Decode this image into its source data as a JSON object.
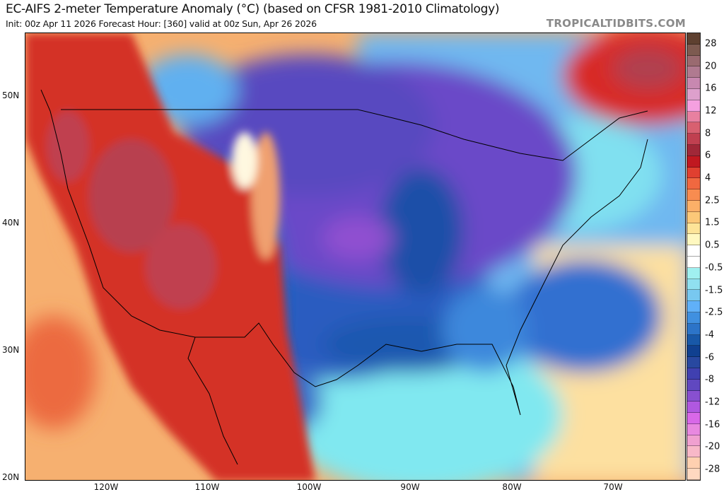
{
  "header": {
    "title": "EC-AIFS 2-meter Temperature Anomaly (°C) (based on CFSR 1981-2010 Climatology)",
    "subtitle": "Init: 00z Apr 11 2026   Forecast Hour: [360]   valid at 00z Sun, Apr 26 2026",
    "brand": "TROPICALTIDBITS.COM"
  },
  "map": {
    "latitude_labels": [
      "50N",
      "40N",
      "30N",
      "20N"
    ],
    "longitude_labels": [
      "120W",
      "110W",
      "100W",
      "90W",
      "80W",
      "70W"
    ]
  },
  "colorbar": {
    "labels": [
      "28",
      "20",
      "16",
      "12",
      "8",
      "6",
      "4",
      "2.5",
      "1.5",
      "0.5",
      "-0.5",
      "-1.5",
      "-2.5",
      "-4",
      "-6",
      "-8",
      "-12",
      "-16",
      "-20",
      "-28"
    ],
    "colors": [
      "#5e4030",
      "#7d5a50",
      "#9a6a70",
      "#b07a90",
      "#c888b0",
      "#dda0cc",
      "#f5a0e0",
      "#e880a0",
      "#d86070",
      "#c04050",
      "#a02838",
      "#c01820",
      "#e04030",
      "#f06840",
      "#f88c50",
      "#fcb068",
      "#fcc878",
      "#fde498",
      "#fff8c0",
      "#ffffff",
      "#ffffff",
      "#a0f0f0",
      "#90e0f0",
      "#78c8f0",
      "#60b0f8",
      "#4090e0",
      "#2c74c8",
      "#1858a8",
      "#104090",
      "#2848a0",
      "#4040b0",
      "#6048c0",
      "#8850d0",
      "#b058e0",
      "#d868e8",
      "#e888e0",
      "#f0a0d0",
      "#f8b8c8",
      "#ffd0b0",
      "#ffd8c0"
    ]
  }
}
